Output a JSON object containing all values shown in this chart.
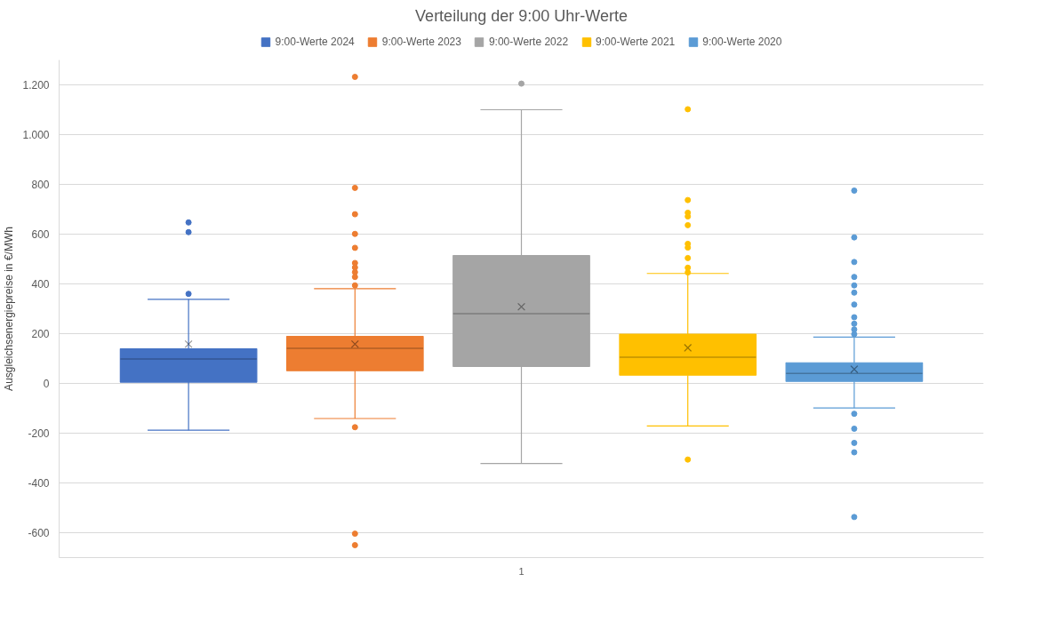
{
  "chart_data": {
    "type": "box",
    "title": "Verteilung der 9:00 Uhr-Werte",
    "ylabel": "Ausgleichsenergiepreise in €/MWh",
    "categories": [
      "1"
    ],
    "series": [
      {
        "name": "9:00-Werte 2024",
        "color": "#4472c4",
        "boxes": [
          {
            "low": -188,
            "q1": 5,
            "median": 98,
            "q3": 139,
            "high": 338,
            "mean": 158,
            "outliers": [
              647,
              608,
              360
            ]
          }
        ]
      },
      {
        "name": "9:00-Werte 2023",
        "color": "#ed7d31",
        "boxes": [
          {
            "low": -141,
            "q1": 51,
            "median": 141,
            "q3": 189,
            "high": 381,
            "mean": 158,
            "outliers": [
              1232,
              786,
              680,
              601,
              545,
              484,
              466,
              447,
              428,
              394,
              -176,
              -604,
              -650
            ]
          }
        ]
      },
      {
        "name": "9:00-Werte 2022",
        "color": "#a5a5a5",
        "boxes": [
          {
            "low": -322,
            "q1": 68,
            "median": 280,
            "q3": 514,
            "high": 1100,
            "mean": 308,
            "outliers": [
              1205
            ]
          }
        ]
      },
      {
        "name": "9:00-Werte 2021",
        "color": "#ffc000",
        "boxes": [
          {
            "low": -171,
            "q1": 33,
            "median": 105,
            "q3": 198,
            "high": 442,
            "mean": 143,
            "outliers": [
              1102,
              737,
              686,
              671,
              636,
              561,
              546,
              504,
              465,
              446,
              -306
            ]
          }
        ]
      },
      {
        "name": "9:00-Werte 2020",
        "color": "#5b9bd5",
        "boxes": [
          {
            "low": -99,
            "q1": 8,
            "median": 40,
            "q3": 83,
            "high": 186,
            "mean": 57,
            "outliers": [
              775,
              587,
              488,
              428,
              394,
              365,
              317,
              266,
              240,
              217,
              198,
              -122,
              -182,
              -239,
              -277,
              -537
            ]
          }
        ]
      }
    ],
    "ylim": [
      -700,
      1300
    ],
    "yticks": [
      {
        "value": -600,
        "label": "-600"
      },
      {
        "value": -400,
        "label": "-400"
      },
      {
        "value": -200,
        "label": "-200"
      },
      {
        "value": 0,
        "label": "0"
      },
      {
        "value": 200,
        "label": "200"
      },
      {
        "value": 400,
        "label": "400"
      },
      {
        "value": 600,
        "label": "600"
      },
      {
        "value": 800,
        "label": "800"
      },
      {
        "value": 1000,
        "label": "1.000"
      },
      {
        "value": 1200,
        "label": "1.200"
      }
    ],
    "grid": "y",
    "legend": "top",
    "marker": "circle"
  }
}
